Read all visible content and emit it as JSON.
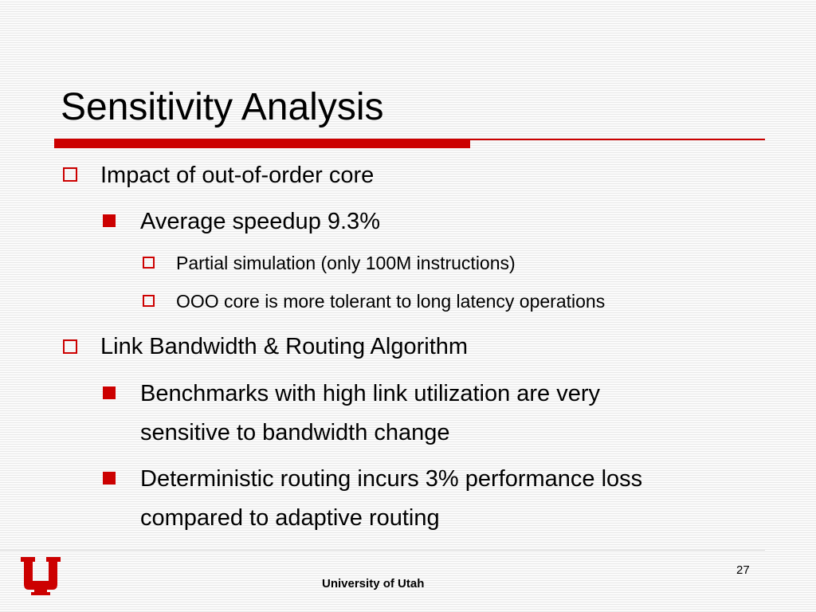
{
  "slide": {
    "title": "Sensitivity Analysis",
    "bullets": [
      {
        "text": "Impact of out-of-order core",
        "children": [
          {
            "text": "Average speedup 9.3%",
            "children": [
              {
                "text": "Partial simulation (only 100M instructions)"
              },
              {
                "text": "OOO core is more tolerant to long latency operations"
              }
            ]
          }
        ]
      },
      {
        "text": "Link Bandwidth & Routing Algorithm",
        "children": [
          {
            "lines": [
              "Benchmarks with high link utilization are very",
              "sensitive to bandwidth change"
            ]
          },
          {
            "lines": [
              "Deterministic routing incurs 3% performance loss",
              "compared to adaptive routing"
            ]
          }
        ]
      }
    ]
  },
  "footer": {
    "institution": "University of Utah",
    "page_number": "27",
    "logo_icon": "university-of-utah-block-u-logo"
  },
  "colors": {
    "accent": "#cc0000",
    "text": "#000000",
    "background_stripe": "#e9e9e9"
  }
}
